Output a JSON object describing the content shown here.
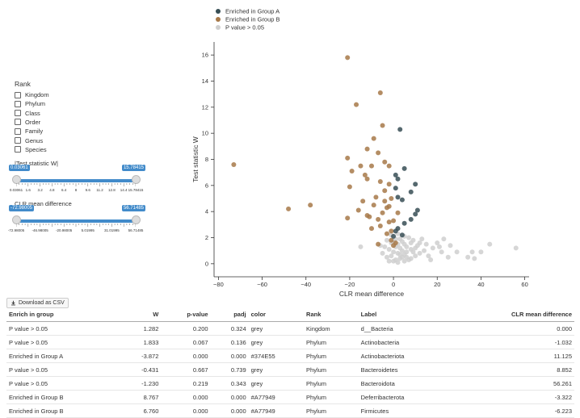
{
  "chart_data": {
    "type": "scatter",
    "xlabel": "CLR mean difference",
    "ylabel": "Test statistic W",
    "xlim": [
      -82,
      62
    ],
    "ylim": [
      -1,
      17
    ],
    "xticks": [
      -80,
      -60,
      -40,
      -20,
      0,
      20,
      40,
      60
    ],
    "yticks": [
      0,
      2,
      4,
      6,
      8,
      10,
      12,
      14,
      16
    ],
    "legend": [
      {
        "name": "Enriched in Group A",
        "color": "#374E55"
      },
      {
        "name": "Enriched in Group B",
        "color": "#A77949"
      },
      {
        "name": "P value > 0.05",
        "color": "#cfcfcf"
      }
    ],
    "series": [
      {
        "name": "Enriched in Group A",
        "color": "#374E55",
        "points": [
          [
            3,
            10.3
          ],
          [
            5,
            7.3
          ],
          [
            1,
            6.8
          ],
          [
            2,
            6.5
          ],
          [
            10,
            6.1
          ],
          [
            8,
            5.5
          ],
          [
            1,
            5.8
          ],
          [
            2,
            5.1
          ],
          [
            4,
            4.9
          ],
          [
            11,
            4.1
          ],
          [
            10,
            3.8
          ],
          [
            8,
            3.4
          ],
          [
            5,
            3.1
          ],
          [
            2,
            2.7
          ],
          [
            1,
            2.5
          ],
          [
            4,
            2.2
          ],
          [
            0,
            2.1
          ]
        ]
      },
      {
        "name": "Enriched in Group B",
        "color": "#A77949",
        "points": [
          [
            -21,
            15.8
          ],
          [
            -6,
            13.1
          ],
          [
            -17,
            12.2
          ],
          [
            -5,
            10.6
          ],
          [
            -9,
            9.6
          ],
          [
            -21,
            8.1
          ],
          [
            -73,
            7.6
          ],
          [
            -12,
            8.8
          ],
          [
            -15,
            7.5
          ],
          [
            -7,
            8.5
          ],
          [
            -4,
            7.8
          ],
          [
            -19,
            7.1
          ],
          [
            -10,
            7.5
          ],
          [
            -13,
            6.8
          ],
          [
            -2,
            7.5
          ],
          [
            -6,
            6.3
          ],
          [
            -2,
            6.1
          ],
          [
            -20,
            5.9
          ],
          [
            -12,
            6.5
          ],
          [
            -4,
            5.6
          ],
          [
            -8,
            5.1
          ],
          [
            -14,
            4.8
          ],
          [
            -1,
            5.0
          ],
          [
            -9,
            4.5
          ],
          [
            -3,
            4.3
          ],
          [
            -48,
            4.2
          ],
          [
            -38,
            4.5
          ],
          [
            -16,
            4.1
          ],
          [
            -5,
            3.9
          ],
          [
            -11,
            3.6
          ],
          [
            -21,
            3.5
          ],
          [
            -2,
            3.2
          ],
          [
            -6,
            2.9
          ],
          [
            -10,
            2.7
          ],
          [
            -3,
            2.3
          ],
          [
            -1,
            1.8
          ],
          [
            -7,
            1.5
          ],
          [
            0,
            1.4
          ],
          [
            -4,
            4.8
          ],
          [
            -12,
            3.7
          ],
          [
            -2,
            4.4
          ],
          [
            -7,
            3.4
          ],
          [
            0,
            3.3
          ],
          [
            2,
            3.9
          ],
          [
            1,
            1.6
          ],
          [
            -1,
            2.5
          ]
        ]
      },
      {
        "name": "P value > 0.05",
        "color": "#cfcfcf",
        "points": [
          [
            56,
            1.2
          ],
          [
            26,
            1.4
          ],
          [
            23,
            1.9
          ],
          [
            20,
            1.6
          ],
          [
            15,
            1.5
          ],
          [
            12,
            0.8
          ],
          [
            22,
            0.9
          ],
          [
            25,
            0.5
          ],
          [
            29,
            0.9
          ],
          [
            34,
            0.5
          ],
          [
            36,
            0.9
          ],
          [
            40,
            0.9
          ],
          [
            44,
            1.5
          ],
          [
            37,
            0.4
          ],
          [
            -15,
            1.3
          ],
          [
            -3,
            1.8
          ],
          [
            -1,
            0.6
          ],
          [
            1,
            0.3
          ],
          [
            2,
            0.8
          ],
          [
            3,
            1.2
          ],
          [
            4,
            0.5
          ],
          [
            5,
            1.5
          ],
          [
            6,
            0.9
          ],
          [
            7,
            0.3
          ],
          [
            8,
            1.1
          ],
          [
            9,
            1.8
          ],
          [
            10,
            0.6
          ],
          [
            11,
            1.4
          ],
          [
            -2,
            1.1
          ],
          [
            -1,
            1.6
          ],
          [
            0,
            0.2
          ],
          [
            1,
            1.9
          ],
          [
            2,
            0.1
          ],
          [
            3,
            0.7
          ],
          [
            4,
            1.7
          ],
          [
            5,
            0.2
          ],
          [
            6,
            1.3
          ],
          [
            7,
            2.0
          ],
          [
            8,
            0.4
          ],
          [
            -3,
            0.5
          ],
          [
            -4,
            1.3
          ],
          [
            -5,
            0.8
          ],
          [
            0,
            0.9
          ],
          [
            1,
            1.3
          ],
          [
            2,
            1.5
          ],
          [
            3,
            0.4
          ],
          [
            4,
            1.0
          ],
          [
            5,
            0.7
          ],
          [
            6,
            0.5
          ],
          [
            14,
            1.0
          ],
          [
            16,
            0.6
          ],
          [
            18,
            1.2
          ],
          [
            13,
            1.9
          ],
          [
            -2,
            0.2
          ],
          [
            0,
            1.7
          ],
          [
            2,
            2.3
          ],
          [
            9,
            0.9
          ],
          [
            12,
            1.6
          ],
          [
            17,
            0.3
          ],
          [
            21,
            1.3
          ],
          [
            -6,
            1.4
          ],
          [
            -1,
            2.2
          ],
          [
            3,
            1.9
          ],
          [
            5,
            2.1
          ],
          [
            8,
            1.6
          ],
          [
            10,
            1.2
          ]
        ]
      }
    ]
  },
  "controls": {
    "rank_title": "Rank",
    "ranks": [
      "Kingdom",
      "Phylum",
      "Class",
      "Order",
      "Family",
      "Genus",
      "Species"
    ],
    "sliders": [
      {
        "label": "|Test statistic W|",
        "min_tag": "0.03061",
        "max_tag": "15.78415",
        "min_frac": 0.0,
        "max_frac": 1.0,
        "tick_labels": [
          "0.03061",
          "1.6",
          "3.2",
          "4.8",
          "6.4",
          "8",
          "9.6",
          "11.2",
          "12.8",
          "14.4",
          "15.78415"
        ]
      },
      {
        "label": "CLR mean difference",
        "min_tag": "-72.98005",
        "max_tag": "56.71485",
        "min_frac": 0.0,
        "max_frac": 1.0,
        "tick_labels": [
          "-72.98005",
          "-46.98005",
          "-20.98005",
          "5.01995",
          "31.01995",
          "56.71485"
        ]
      }
    ]
  },
  "download_label": "Download as CSV",
  "table": {
    "headers": [
      "Enrich in group",
      "W",
      "p-value",
      "padj",
      "color",
      "Rank",
      "Label",
      "CLR mean difference"
    ],
    "rows": [
      [
        "P value > 0.05",
        "1.282",
        "0.200",
        "0.324",
        "grey",
        "Kingdom",
        "d__Bacteria",
        "0.000"
      ],
      [
        "P value > 0.05",
        "1.833",
        "0.067",
        "0.136",
        "grey",
        "Phylum",
        "Actinobacteria",
        "-1.032"
      ],
      [
        "Enriched in Group A",
        "-3.872",
        "0.000",
        "0.000",
        "#374E55",
        "Phylum",
        "Actinobacteriota",
        "11.125"
      ],
      [
        "P value > 0.05",
        "-0.431",
        "0.667",
        "0.739",
        "grey",
        "Phylum",
        "Bacteroidetes",
        "8.852"
      ],
      [
        "P value > 0.05",
        "-1.230",
        "0.219",
        "0.343",
        "grey",
        "Phylum",
        "Bacteroidota",
        "56.261"
      ],
      [
        "Enriched in Group B",
        "8.767",
        "0.000",
        "0.000",
        "#A77949",
        "Phylum",
        "Deferribacterota",
        "-3.322"
      ],
      [
        "Enriched in Group B",
        "6.760",
        "0.000",
        "0.000",
        "#A77949",
        "Phylum",
        "Firmicutes",
        "-6.223"
      ]
    ]
  }
}
